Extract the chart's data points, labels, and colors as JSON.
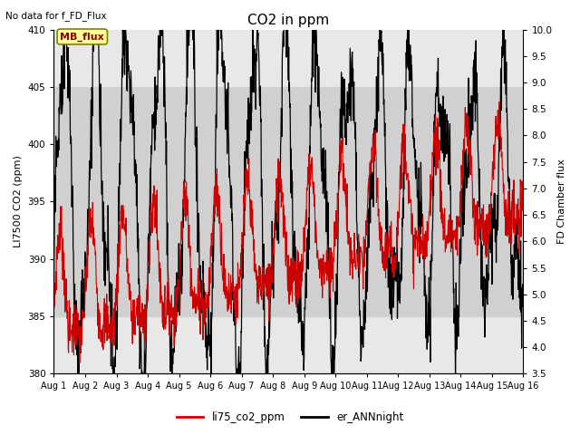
{
  "title": "CO2 in ppm",
  "top_left_text": "No data for f_FD_Flux",
  "annotation_text": "MB_flux",
  "ylabel_left": "LI7500 CO2 (ppm)",
  "ylabel_right": "FD Chamber flux",
  "ylim_left": [
    380,
    410
  ],
  "ylim_right": [
    3.5,
    10.0
  ],
  "yticks_left": [
    380,
    385,
    390,
    395,
    400,
    405,
    410
  ],
  "yticks_right": [
    3.5,
    4.0,
    4.5,
    5.0,
    5.5,
    6.0,
    6.5,
    7.0,
    7.5,
    8.0,
    8.5,
    9.0,
    9.5,
    10.0
  ],
  "xtick_labels": [
    "Aug 1",
    "Aug 2",
    "Aug 3",
    "Aug 4",
    "Aug 5",
    "Aug 6",
    "Aug 7",
    "Aug 8",
    "Aug 9",
    "Aug 10",
    "Aug 11",
    "Aug 12",
    "Aug 13",
    "Aug 14",
    "Aug 15",
    "Aug 16"
  ],
  "shade_ylim": [
    385,
    405
  ],
  "line1_color": "#cc0000",
  "line2_color": "#000000",
  "line1_label": "li75_co2_ppm",
  "line2_label": "er_ANNnight",
  "line1_linewidth": 0.8,
  "line2_linewidth": 0.9,
  "bg_color": "#e8e8e8",
  "shade_color": "#d0d0d0",
  "title_fontsize": 11,
  "label_fontsize": 8,
  "tick_fontsize": 7.5,
  "figsize": [
    6.4,
    4.8
  ],
  "dpi": 100
}
